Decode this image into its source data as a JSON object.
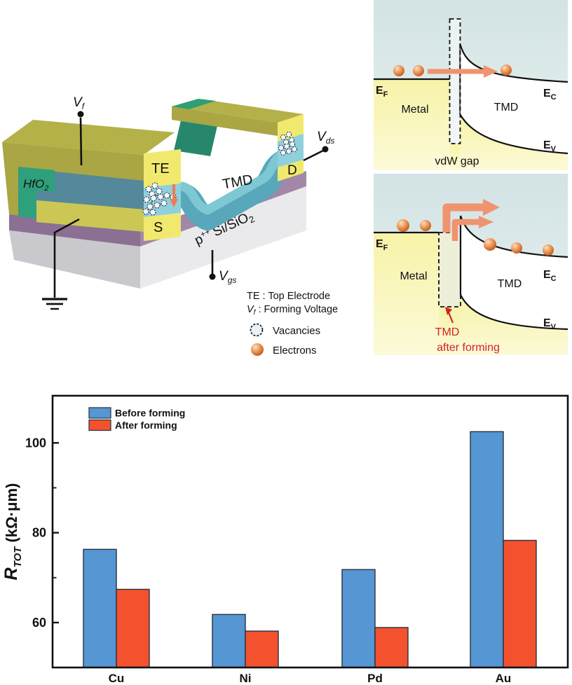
{
  "colors": {
    "before_forming_blue": "#5596D3",
    "after_forming_orange": "#F4512E",
    "electrode_yellow": "#F1E96E",
    "gate_olive": "#B4B149",
    "hfo2_green": "#2FA07C",
    "tmd_teal": "#58A7BA",
    "sio2_purple": "#A287A8",
    "substrate_gray": "#EAEAEC",
    "electron_orange": "#EC9A5C",
    "salmon_arrow": "#F0936F",
    "red_annotation": "#D2232A"
  },
  "device": {
    "vf": {
      "base": "V",
      "sub": "f"
    },
    "vds": {
      "base": "V",
      "sub": "ds"
    },
    "vgs": {
      "base": "V",
      "sub": "gs"
    },
    "hfo2": {
      "base": "HfO",
      "sub": "2"
    },
    "te": "TE",
    "s": "S",
    "d": "D",
    "tmd": "TMD",
    "substrate": {
      "base": "p",
      "sup": "++",
      "mid": "Si/SiO",
      "sub": "2"
    },
    "key": {
      "te_line": "TE : Top Electrode",
      "vf_base": "V",
      "vf_sub": "f",
      "vf_rest": ": Forming Voltage",
      "vacancies": "Vacancies",
      "electrons": "Electrons"
    }
  },
  "band_top": {
    "ef_base": "E",
    "ef_sub": "F",
    "metal": "Metal",
    "tmd": "TMD",
    "ec_base": "E",
    "ec_sub": "C",
    "ev_base": "E",
    "ev_sub": "V",
    "gap_label": "vdW gap"
  },
  "band_bottom": {
    "ef_base": "E",
    "ef_sub": "F",
    "metal": "Metal",
    "tmd": "TMD",
    "ec_base": "E",
    "ec_sub": "C",
    "ev_base": "E",
    "ev_sub": "V",
    "note_line1": "TMD",
    "note_line2": "after forming"
  },
  "chart_data": {
    "type": "bar",
    "categories": [
      "Cu",
      "Ni",
      "Pd",
      "Au"
    ],
    "series": [
      {
        "name": "Before forming",
        "color": "#5596D3",
        "values": [
          76.3,
          61.8,
          71.8,
          102.5
        ]
      },
      {
        "name": "After forming",
        "color": "#F4512E",
        "values": [
          67.4,
          58.1,
          58.9,
          78.3
        ]
      }
    ],
    "title": "",
    "xlabel": "",
    "ylabel": "R_TOT (kΩ·μm)",
    "ylabel_parts": {
      "main": "R",
      "sub": "TOT",
      "units": "(kΩ·μm)"
    },
    "yticks": [
      60,
      80,
      100
    ],
    "yticks_minor": [
      70,
      90
    ],
    "ylim": [
      50,
      110.5
    ],
    "grid": false,
    "legend_position": "top-left"
  }
}
